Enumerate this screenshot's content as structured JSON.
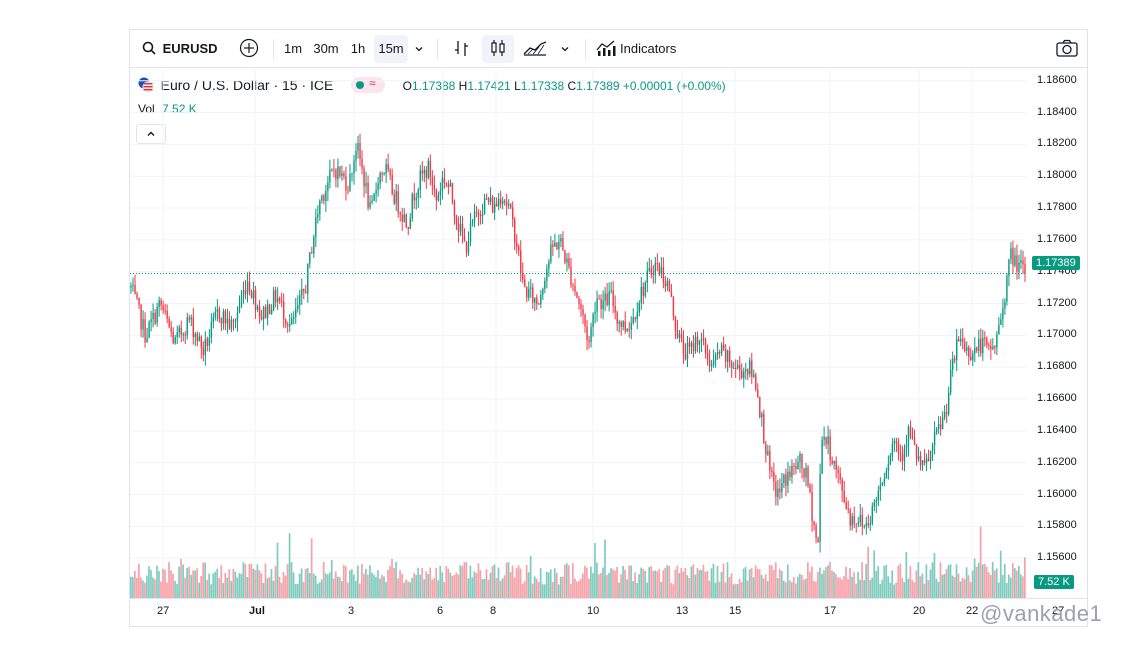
{
  "toolbar": {
    "symbol": "EURUSD",
    "intervals": [
      "1m",
      "30m",
      "1h",
      "15m"
    ],
    "active_interval": "15m",
    "indicators_label": "Indicators"
  },
  "legend": {
    "title": "Euro / U.S. Dollar · 15 · ICE",
    "open_label": "O",
    "open": "1.17388",
    "high_label": "H",
    "high": "1.17421",
    "low_label": "L",
    "low": "1.17338",
    "close_label": "C",
    "close": "1.17389",
    "change": "+0.00001 (+0.00%)",
    "vol_label": "Vol",
    "vol_value": "7.52 K"
  },
  "last_price_tag": "1.17389",
  "vol_tag": "7.52 K",
  "watermark": "@vankade1",
  "colors": {
    "up": "#089981",
    "down": "#f23645",
    "up_vol": "#7fccbf",
    "down_vol": "#f7a1a8"
  },
  "chart_data": {
    "type": "candlestick",
    "symbol": "EURUSD",
    "interval": "15",
    "y_ticks": [
      "1.18600",
      "1.18400",
      "1.18200",
      "1.18000",
      "1.17800",
      "1.17600",
      "1.17400",
      "1.17200",
      "1.17000",
      "1.16800",
      "1.16600",
      "1.16400",
      "1.16200",
      "1.16000",
      "1.15800",
      "1.15600"
    ],
    "ylim": [
      1.1535,
      1.1868
    ],
    "x_ticks": [
      "27",
      "Jul",
      "3",
      "6",
      "8",
      "10",
      "13",
      "15",
      "17",
      "20",
      "22",
      "27"
    ],
    "last_price": 1.17389,
    "price_path": [
      [
        0,
        1.173
      ],
      [
        2,
        1.17
      ],
      [
        4,
        1.172
      ],
      [
        6,
        1.1695
      ],
      [
        8,
        1.171
      ],
      [
        10,
        1.169
      ],
      [
        12,
        1.1715
      ],
      [
        14,
        1.1705
      ],
      [
        16,
        1.1735
      ],
      [
        18,
        1.1712
      ],
      [
        20,
        1.1725
      ],
      [
        22,
        1.1705
      ],
      [
        24,
        1.173
      ],
      [
        25,
        1.176
      ],
      [
        26,
        1.1785
      ],
      [
        28,
        1.1805
      ],
      [
        30,
        1.1795
      ],
      [
        31,
        1.182
      ],
      [
        32,
        1.18
      ],
      [
        33,
        1.1775
      ],
      [
        34,
        1.18
      ],
      [
        35,
        1.1805
      ],
      [
        36,
        1.179
      ],
      [
        37,
        1.178
      ],
      [
        38,
        1.177
      ],
      [
        39,
        1.179
      ],
      [
        40,
        1.18
      ],
      [
        41,
        1.1805
      ],
      [
        42,
        1.1785
      ],
      [
        43,
        1.18
      ],
      [
        44,
        1.179
      ],
      [
        45,
        1.177
      ],
      [
        46,
        1.1755
      ],
      [
        47,
        1.177
      ],
      [
        48,
        1.178
      ],
      [
        49,
        1.1785
      ],
      [
        50,
        1.178
      ],
      [
        51,
        1.179
      ],
      [
        52,
        1.178
      ],
      [
        53,
        1.176
      ],
      [
        54,
        1.173
      ],
      [
        55,
        1.1725
      ],
      [
        56,
        1.172
      ],
      [
        57,
        1.174
      ],
      [
        58,
        1.1755
      ],
      [
        59,
        1.176
      ],
      [
        60,
        1.1745
      ],
      [
        61,
        1.173
      ],
      [
        62,
        1.1715
      ],
      [
        63,
        1.1695
      ],
      [
        64,
        1.1725
      ],
      [
        65,
        1.172
      ],
      [
        66,
        1.1725
      ],
      [
        67,
        1.171
      ],
      [
        68,
        1.1705
      ],
      [
        69,
        1.171
      ],
      [
        70,
        1.1725
      ],
      [
        71,
        1.1735
      ],
      [
        72,
        1.1745
      ],
      [
        73,
        1.174
      ],
      [
        74,
        1.173
      ],
      [
        75,
        1.1705
      ],
      [
        76,
        1.169
      ],
      [
        77,
        1.169
      ],
      [
        78,
        1.17
      ],
      [
        79,
        1.169
      ],
      [
        80,
        1.168
      ],
      [
        81,
        1.169
      ],
      [
        82,
        1.1685
      ],
      [
        83,
        1.168
      ],
      [
        84,
        1.1678
      ],
      [
        85,
        1.168
      ],
      [
        86,
        1.167
      ],
      [
        87,
        1.164
      ],
      [
        88,
        1.161
      ],
      [
        89,
        1.16
      ],
      [
        90,
        1.161
      ],
      [
        91,
        1.1615
      ],
      [
        92,
        1.162
      ],
      [
        93,
        1.161
      ],
      [
        94,
        1.158
      ],
      [
        94.5,
        1.1565
      ],
      [
        95,
        1.164
      ],
      [
        96,
        1.163
      ],
      [
        97,
        1.1615
      ],
      [
        98,
        1.16
      ],
      [
        99,
        1.1585
      ],
      [
        100,
        1.1585
      ],
      [
        101,
        1.158
      ],
      [
        102,
        1.159
      ],
      [
        103,
        1.1605
      ],
      [
        104,
        1.162
      ],
      [
        105,
        1.1635
      ],
      [
        106,
        1.1625
      ],
      [
        107,
        1.164
      ],
      [
        108,
        1.1625
      ],
      [
        109,
        1.1615
      ],
      [
        110,
        1.1625
      ],
      [
        111,
        1.164
      ],
      [
        112,
        1.165
      ],
      [
        113,
        1.168
      ],
      [
        114,
        1.17
      ],
      [
        115,
        1.169
      ],
      [
        116,
        1.169
      ],
      [
        117,
        1.1695
      ],
      [
        118,
        1.169
      ],
      [
        119,
        1.1695
      ],
      [
        120,
        1.172
      ],
      [
        121,
        1.175
      ],
      [
        122,
        1.1745
      ],
      [
        123,
        1.1739
      ]
    ]
  }
}
